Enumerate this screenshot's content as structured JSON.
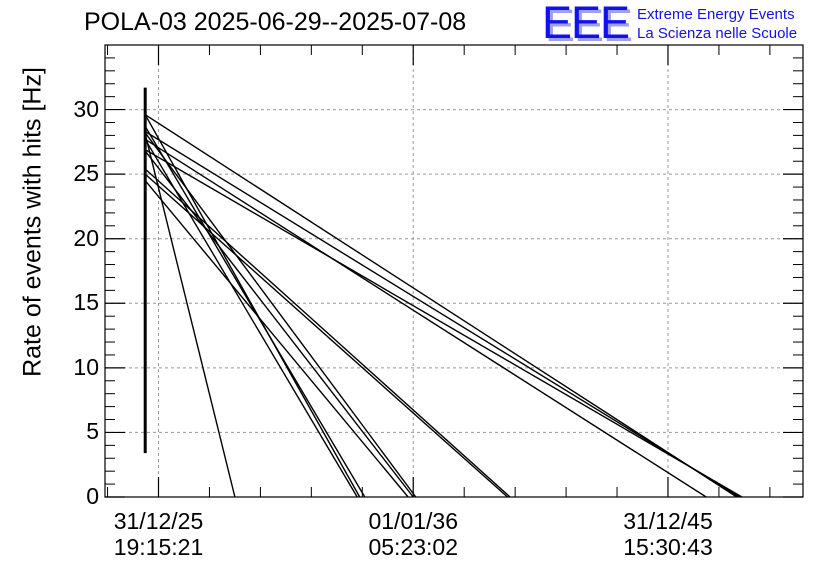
{
  "title": "POLA-03 2025-06-29--2025-07-08",
  "logo": {
    "mark": "EEE",
    "line1": "Extreme Energy Events",
    "line2": "La Scienza nelle Scuole",
    "color": "#1111ee"
  },
  "chart_data": {
    "type": "line",
    "title": "POLA-03 2025-06-29--2025-07-08",
    "xlabel": "",
    "ylabel": "Rate of events with hits [Hz]",
    "ylim": [
      0,
      35
    ],
    "yticks": [
      0,
      5,
      10,
      15,
      20,
      25,
      30
    ],
    "xticks": [
      {
        "line1": "31/12/25",
        "line2": "19:15:21",
        "value": 0.0
      },
      {
        "line1": "01/01/36",
        "line2": "05:23:02",
        "value": 10.0
      },
      {
        "line1": "31/12/45",
        "line2": "15:30:43",
        "value": 20.0
      }
    ],
    "xlim": [
      -2.1,
      25.3
    ],
    "x_unit": "years after 31/12/25 19:15:21",
    "grid": true,
    "series": [
      {
        "x": [
          -0.52,
          -0.52
        ],
        "y": [
          3.4,
          31.7
        ]
      },
      {
        "x": [
          -0.52,
          3.0
        ],
        "y": [
          28.1,
          0.0
        ]
      },
      {
        "x": [
          -0.52,
          7.8
        ],
        "y": [
          27.7,
          0.0
        ]
      },
      {
        "x": [
          -0.52,
          8.1
        ],
        "y": [
          28.7,
          0.0
        ]
      },
      {
        "x": [
          -0.52,
          7.9
        ],
        "y": [
          29.6,
          0.0
        ]
      },
      {
        "x": [
          -0.52,
          10.0
        ],
        "y": [
          26.8,
          0.0
        ]
      },
      {
        "x": [
          -0.52,
          10.1
        ],
        "y": [
          28.2,
          0.0
        ]
      },
      {
        "x": [
          -0.52,
          13.8
        ],
        "y": [
          25.4,
          0.0
        ]
      },
      {
        "x": [
          -0.52,
          21.5
        ],
        "y": [
          27.7,
          0.0
        ]
      },
      {
        "x": [
          -0.52,
          22.9
        ],
        "y": [
          26.9,
          0.0
        ]
      },
      {
        "x": [
          -0.52,
          22.8
        ],
        "y": [
          28.3,
          0.0
        ]
      },
      {
        "x": [
          -0.52,
          22.7
        ],
        "y": [
          29.6,
          0.0
        ]
      },
      {
        "x": [
          -0.52,
          9.8
        ],
        "y": [
          24.5,
          0.0
        ]
      },
      {
        "x": [
          -0.52,
          13.7
        ],
        "y": [
          25.0,
          0.0
        ]
      }
    ]
  }
}
